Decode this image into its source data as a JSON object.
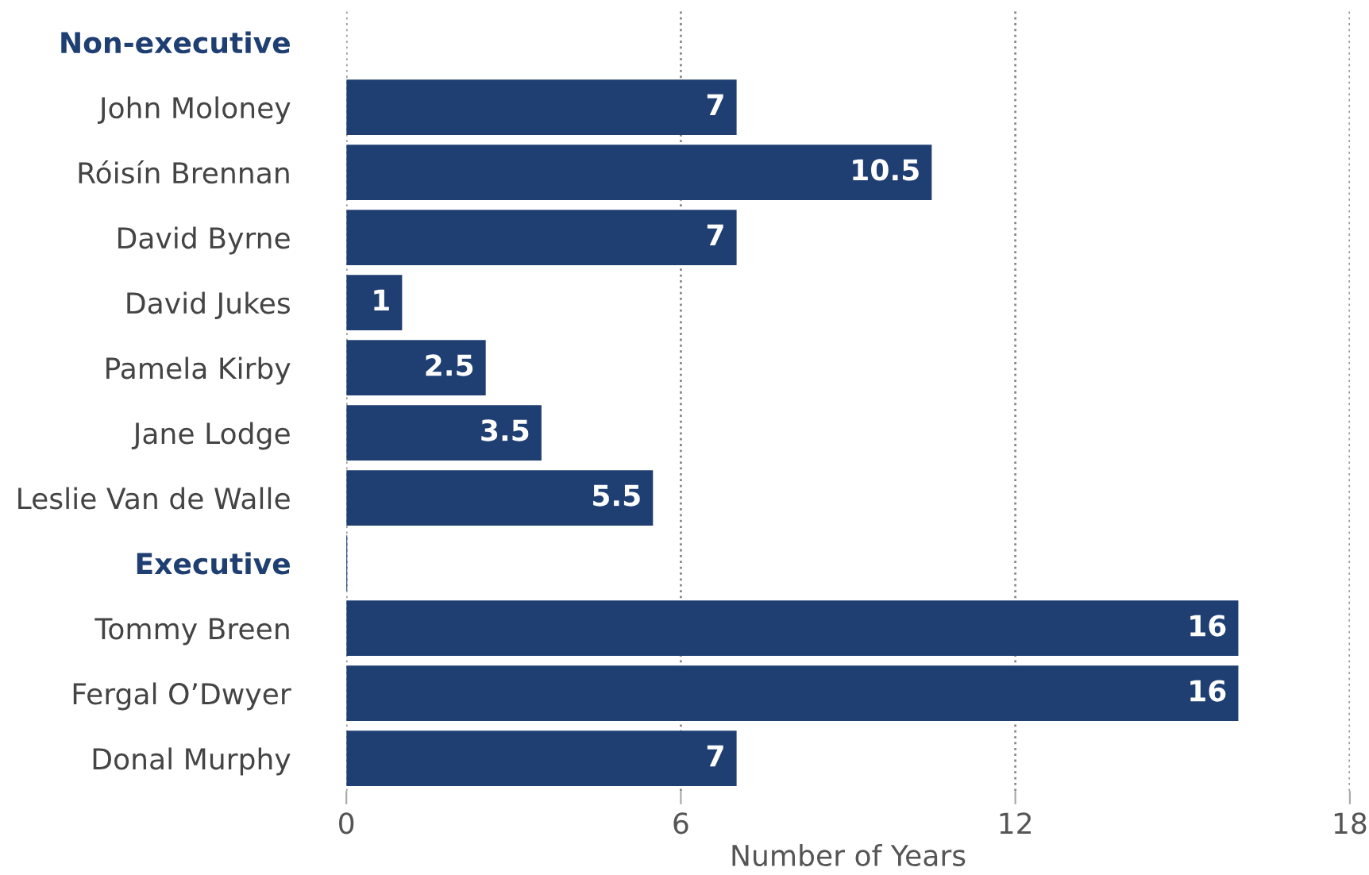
{
  "chart_data": {
    "type": "bar",
    "orientation": "horizontal",
    "xlabel": "Number of Years",
    "categories": [
      "Non-executive",
      "John Moloney",
      "Róisín Brennan",
      "David Byrne",
      "David Jukes",
      "Pamela Kirby",
      "Jane Lodge",
      "Leslie Van de Walle",
      "Executive",
      "Tommy Breen",
      "Fergal O’Dwyer",
      "Donal Murphy"
    ],
    "values": [
      null,
      7,
      10.5,
      7,
      1,
      2.5,
      3.5,
      5.5,
      0,
      16,
      16,
      7
    ],
    "value_labels": [
      null,
      "7",
      "10.5",
      "7",
      "1",
      "2.5",
      "3.5",
      "5.5",
      null,
      "16",
      "16",
      "7"
    ],
    "color": "#1f3f73",
    "xlim": [
      0,
      18
    ],
    "xticks": [
      0,
      6,
      12,
      18
    ],
    "grid": "x",
    "legend": false
  }
}
